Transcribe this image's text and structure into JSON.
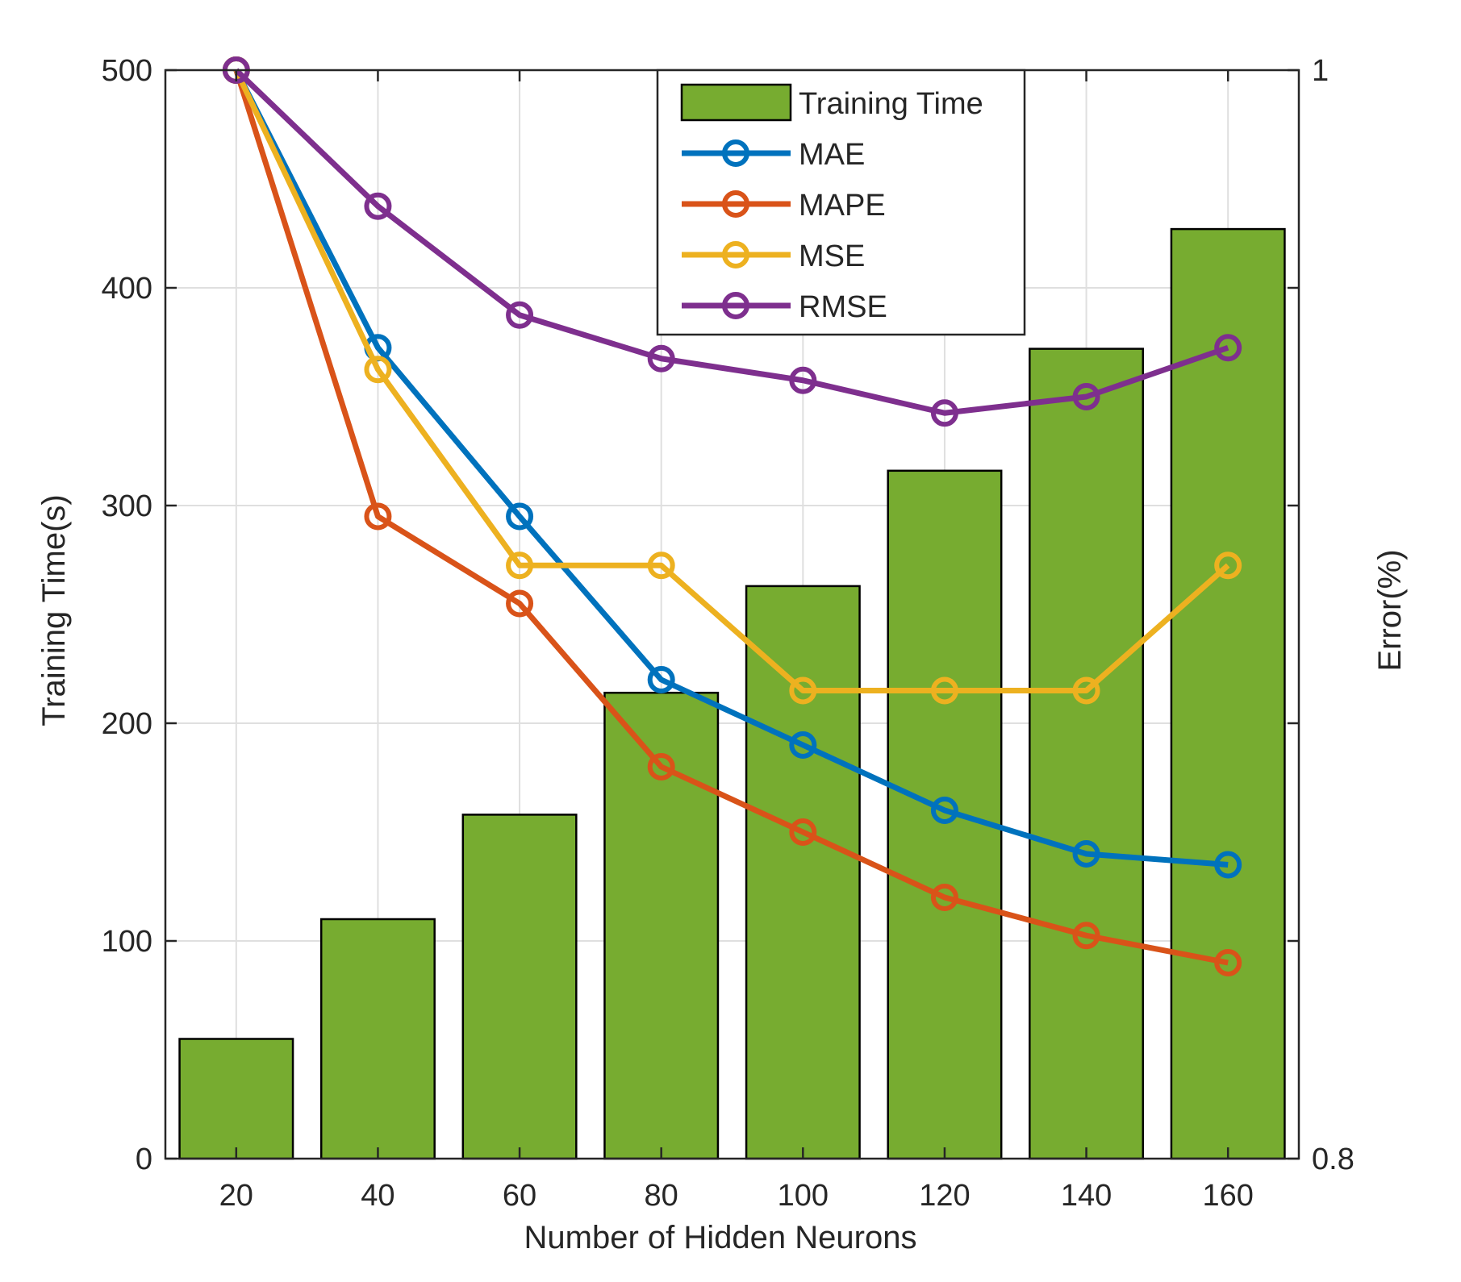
{
  "chart_data": {
    "type": "bar",
    "title": "",
    "xlabel": "Number of Hidden Neurons",
    "ylabel": "Training Time(s)",
    "y2label": "Error(%)",
    "categories": [
      "20",
      "40",
      "60",
      "80",
      "100",
      "120",
      "140",
      "160"
    ],
    "ylim": [
      0,
      500
    ],
    "yticks": [
      "0",
      "100",
      "200",
      "300",
      "400",
      "500"
    ],
    "y2lim": [
      0.8,
      1
    ],
    "y2ticks": [
      "0.8",
      "1"
    ],
    "grid": true,
    "legend_position": "top-center",
    "bars": {
      "name": "Training Time",
      "color": "#77AC30",
      "values": [
        55,
        110,
        158,
        214,
        263,
        316,
        372,
        427
      ]
    },
    "series": [
      {
        "name": "MAE",
        "color": "#0072BD",
        "axis": "right",
        "values": [
          1.0,
          0.949,
          0.918,
          0.888,
          0.876,
          0.864,
          0.856,
          0.854
        ]
      },
      {
        "name": "MAPE",
        "color": "#D95319",
        "axis": "right",
        "values": [
          1.0,
          0.918,
          0.902,
          0.872,
          0.86,
          0.848,
          0.841,
          0.836
        ]
      },
      {
        "name": "MSE",
        "color": "#EDB120",
        "axis": "right",
        "values": [
          1.0,
          0.945,
          0.909,
          0.909,
          0.886,
          0.886,
          0.886,
          0.909
        ]
      },
      {
        "name": "RMSE",
        "color": "#7E2F8E",
        "axis": "right",
        "values": [
          1.0,
          0.975,
          0.955,
          0.947,
          0.943,
          0.937,
          0.94,
          0.949
        ]
      }
    ]
  }
}
